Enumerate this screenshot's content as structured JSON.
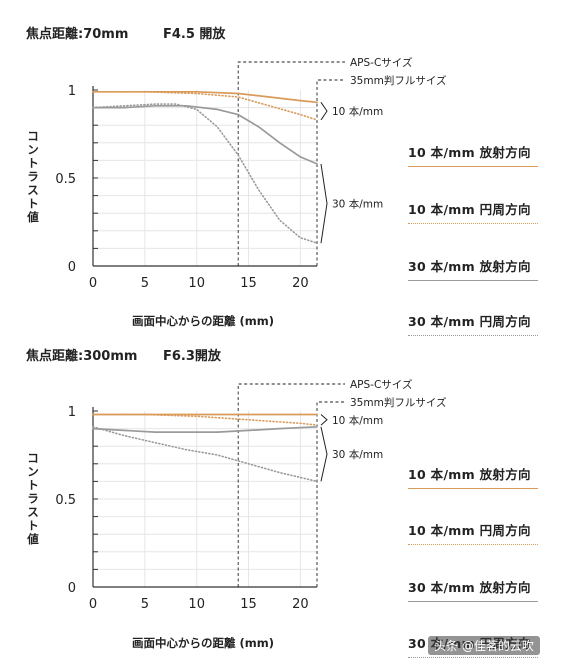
{
  "chart_data": [
    {
      "type": "line",
      "title": "焦点距離:70mm",
      "subtitle": "F4.5 開放",
      "xlabel": "画面中心からの距離 (mm)",
      "ylabel": "コントラスト値",
      "xlim": [
        0,
        21.6
      ],
      "ylim": [
        0,
        1
      ],
      "xticks": [
        "0",
        "5",
        "10",
        "15",
        "20"
      ],
      "yticks": [
        "0",
        "0.5",
        "1"
      ],
      "grid": true,
      "frame_labels": {
        "apsc": "APS-Cサイズ",
        "ff": "35mm判フルサイズ"
      },
      "group_labels": {
        "lp10": "10 本/mm",
        "lp30": "30 本/mm"
      },
      "markers": {
        "apsc_x": 14,
        "ff_x": 21.6
      },
      "series": [
        {
          "name": "10 本/mm 放射方向",
          "color": "#d99a5a",
          "style": "solid",
          "x": [
            0,
            5,
            10,
            14,
            17,
            20,
            21.6
          ],
          "values": [
            0.99,
            0.99,
            0.99,
            0.98,
            0.96,
            0.94,
            0.93
          ]
        },
        {
          "name": "10 本/mm 円周方向",
          "color": "#d99a5a",
          "style": "dotted",
          "x": [
            0,
            5,
            10,
            14,
            17,
            20,
            21.6
          ],
          "values": [
            0.99,
            0.99,
            0.98,
            0.96,
            0.91,
            0.86,
            0.83
          ]
        },
        {
          "name": "30 本/mm 放射方向",
          "color": "#9a9a9a",
          "style": "solid",
          "x": [
            0,
            3,
            6,
            9,
            12,
            14,
            16,
            18,
            20,
            21.6
          ],
          "values": [
            0.9,
            0.9,
            0.91,
            0.91,
            0.89,
            0.86,
            0.79,
            0.7,
            0.62,
            0.58
          ]
        },
        {
          "name": "30 本/mm 円周方向",
          "color": "#9a9a9a",
          "style": "dotted",
          "x": [
            0,
            3,
            6,
            8,
            10,
            12,
            14,
            16,
            18,
            20,
            21.6
          ],
          "values": [
            0.9,
            0.91,
            0.92,
            0.92,
            0.89,
            0.79,
            0.63,
            0.43,
            0.26,
            0.16,
            0.13
          ]
        }
      ]
    },
    {
      "type": "line",
      "title": "焦点距離:300mm",
      "subtitle": "F6.3開放",
      "xlabel": "画面中心からの距離 (mm)",
      "ylabel": "コントラスト値",
      "xlim": [
        0,
        21.6
      ],
      "ylim": [
        0,
        1
      ],
      "xticks": [
        "0",
        "5",
        "10",
        "15",
        "20"
      ],
      "yticks": [
        "0",
        "0.5",
        "1"
      ],
      "grid": true,
      "frame_labels": {
        "apsc": "APS-Cサイズ",
        "ff": "35mm判フルサイズ"
      },
      "group_labels": {
        "lp10": "10 本/mm",
        "lp30": "30 本/mm"
      },
      "markers": {
        "apsc_x": 14,
        "ff_x": 21.6
      },
      "series": [
        {
          "name": "10 本/mm 放射方向",
          "color": "#d99a5a",
          "style": "solid",
          "x": [
            0,
            5,
            10,
            15,
            20,
            21.6
          ],
          "values": [
            0.98,
            0.98,
            0.98,
            0.98,
            0.98,
            0.98
          ]
        },
        {
          "name": "10 本/mm 円周方向",
          "color": "#d99a5a",
          "style": "dotted",
          "x": [
            0,
            5,
            10,
            15,
            20,
            21.6
          ],
          "values": [
            0.98,
            0.98,
            0.97,
            0.95,
            0.93,
            0.92
          ]
        },
        {
          "name": "30 本/mm 放射方向",
          "color": "#9a9a9a",
          "style": "solid",
          "x": [
            0,
            3,
            6,
            9,
            12,
            15,
            18,
            21.6
          ],
          "values": [
            0.9,
            0.89,
            0.88,
            0.88,
            0.88,
            0.89,
            0.9,
            0.91
          ]
        },
        {
          "name": "30 本/mm 円周方向",
          "color": "#9a9a9a",
          "style": "dotted",
          "x": [
            0,
            3,
            6,
            9,
            12,
            15,
            18,
            21.6
          ],
          "values": [
            0.91,
            0.86,
            0.82,
            0.78,
            0.75,
            0.7,
            0.65,
            0.6
          ]
        }
      ]
    }
  ],
  "legend": {
    "items": [
      {
        "label": "10 本/mm 放射方向"
      },
      {
        "label": "10 本/mm 円周方向"
      },
      {
        "label": "30 本/mm 放射方向"
      },
      {
        "label": "30 本/mm 円周方向"
      }
    ]
  },
  "watermark": "头条 @佳茗的云吹"
}
